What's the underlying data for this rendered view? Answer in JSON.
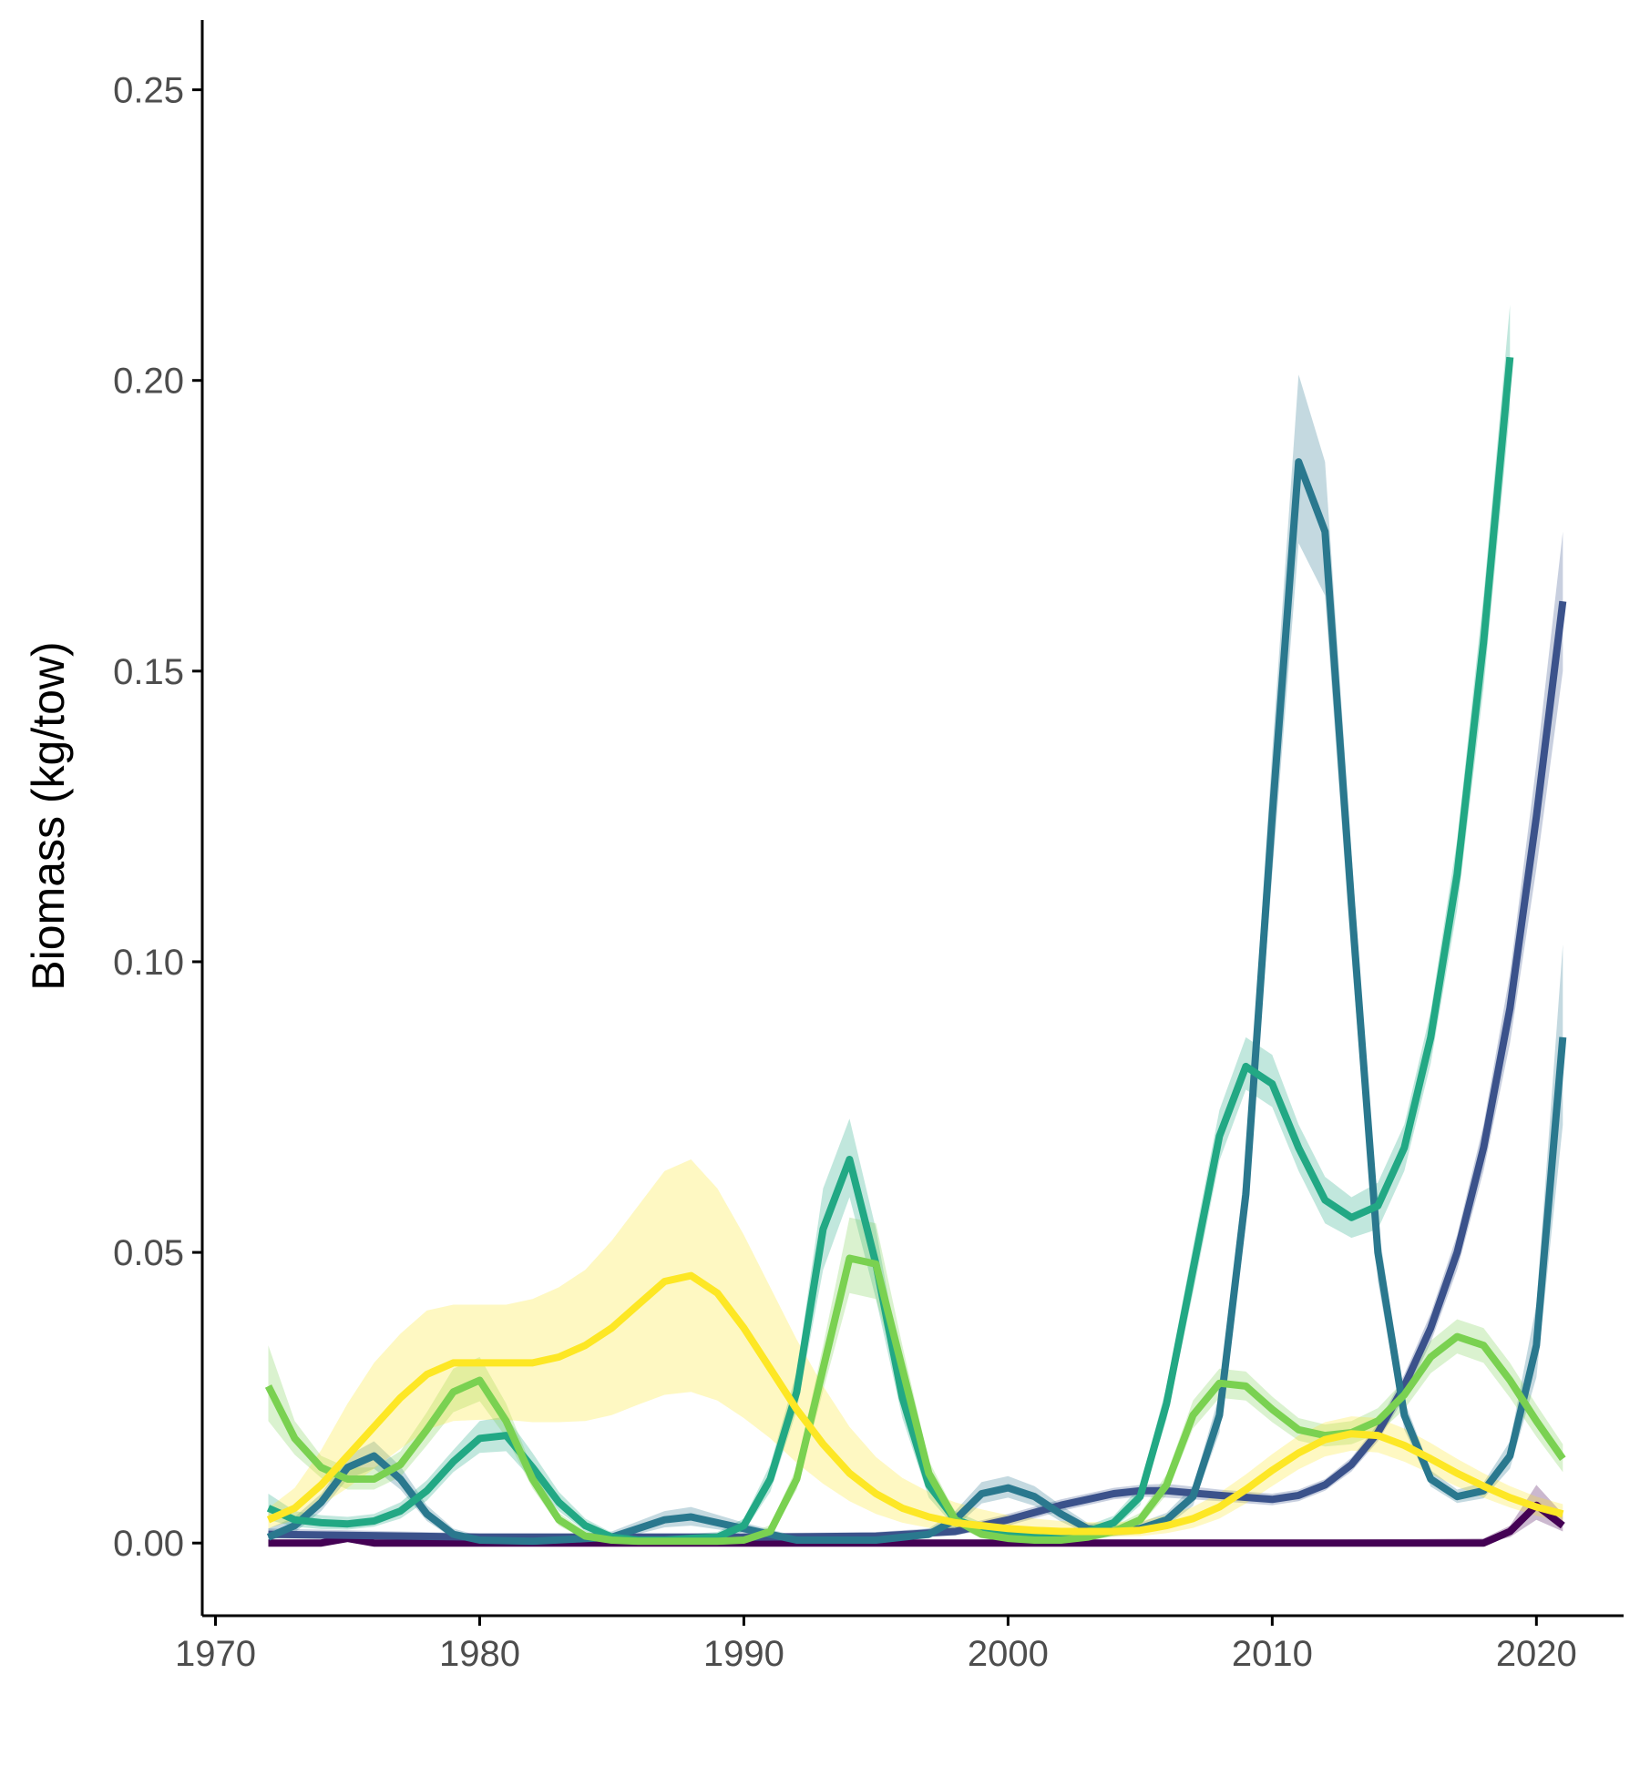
{
  "chart_data": {
    "type": "line",
    "ylabel": "Biomass (kg/tow)",
    "xlim": [
      1969.5,
      2023.3
    ],
    "ylim": [
      -0.0125,
      0.262
    ],
    "x_ticks": [
      1970,
      1980,
      1990,
      2000,
      2010,
      2020
    ],
    "y_ticks": [
      0.0,
      0.05,
      0.1,
      0.15,
      0.2,
      0.25
    ],
    "x_tick_labels": [
      "1970",
      "1980",
      "1990",
      "2000",
      "2010",
      "2020"
    ],
    "y_tick_labels": [
      "0.00",
      "0.05",
      "0.10",
      "0.15",
      "0.20",
      "0.25"
    ],
    "grid": false,
    "legend": "none",
    "series": [
      {
        "color": "#440154",
        "x": [
          1972,
          1974,
          1975,
          1976,
          1980,
          1990,
          2000,
          2010,
          2018,
          2019,
          2020,
          2021
        ],
        "values": [
          0.0,
          0.0,
          0.0008,
          0.0,
          0.0,
          0.0,
          0.0,
          0.0,
          0.0,
          0.002,
          0.0065,
          0.003
        ],
        "upper": [
          0.0005,
          0.0005,
          0.0012,
          0.0005,
          0.0005,
          0.0005,
          0.0005,
          0.0005,
          0.0008,
          0.003,
          0.01,
          0.005
        ],
        "lower": [
          0.0,
          0.0,
          0.0004,
          0.0,
          0.0,
          0.0,
          0.0,
          0.0,
          0.0,
          0.001,
          0.004,
          0.002
        ]
      },
      {
        "color": "#3b528b",
        "x": [
          1972,
          1980,
          1990,
          1995,
          1998,
          2000,
          2002,
          2004,
          2005,
          2006,
          2008,
          2010,
          2011,
          2012,
          2013,
          2014,
          2015,
          2016,
          2017,
          2018,
          2019,
          2020,
          2021
        ],
        "values": [
          0.0015,
          0.001,
          0.001,
          0.0012,
          0.002,
          0.004,
          0.0065,
          0.0085,
          0.009,
          0.009,
          0.0082,
          0.0075,
          0.0082,
          0.01,
          0.0135,
          0.019,
          0.027,
          0.037,
          0.05,
          0.068,
          0.092,
          0.125,
          0.162
        ],
        "upper": [
          0.0025,
          0.0017,
          0.0017,
          0.0019,
          0.0028,
          0.005,
          0.0075,
          0.0095,
          0.01,
          0.0102,
          0.0092,
          0.0085,
          0.0092,
          0.011,
          0.0147,
          0.0205,
          0.029,
          0.0395,
          0.053,
          0.072,
          0.098,
          0.134,
          0.174
        ],
        "lower": [
          0.0008,
          0.0004,
          0.0004,
          0.0006,
          0.0013,
          0.003,
          0.0055,
          0.0075,
          0.008,
          0.0078,
          0.0072,
          0.0065,
          0.0072,
          0.009,
          0.0123,
          0.0175,
          0.025,
          0.0345,
          0.047,
          0.064,
          0.086,
          0.116,
          0.15
        ]
      },
      {
        "color": "#2a788e",
        "x": [
          1972,
          1973,
          1974,
          1975,
          1976,
          1977,
          1978,
          1979,
          1980,
          1982,
          1985,
          1987,
          1988,
          1990,
          1992,
          1995,
          1997,
          1998,
          1999,
          2000,
          2001,
          2002,
          2003,
          2004,
          2005,
          2006,
          2007,
          2008,
          2009,
          2010,
          2011,
          2012,
          2013,
          2014,
          2015,
          2016,
          2017,
          2018,
          2019,
          2020,
          2021
        ],
        "values": [
          0.001,
          0.003,
          0.007,
          0.013,
          0.015,
          0.011,
          0.005,
          0.0015,
          0.0005,
          0.0003,
          0.001,
          0.004,
          0.0045,
          0.0025,
          0.0005,
          0.0005,
          0.0015,
          0.004,
          0.0085,
          0.0095,
          0.008,
          0.005,
          0.0025,
          0.002,
          0.0025,
          0.004,
          0.008,
          0.022,
          0.06,
          0.125,
          0.186,
          0.174,
          0.11,
          0.05,
          0.022,
          0.011,
          0.008,
          0.009,
          0.015,
          0.034,
          0.087
        ],
        "upper": [
          0.0025,
          0.0045,
          0.0085,
          0.015,
          0.0175,
          0.0132,
          0.0065,
          0.0025,
          0.0012,
          0.001,
          0.002,
          0.0055,
          0.0062,
          0.0035,
          0.0012,
          0.0012,
          0.0025,
          0.0055,
          0.0105,
          0.0115,
          0.0098,
          0.0065,
          0.0035,
          0.003,
          0.0035,
          0.0052,
          0.0098,
          0.0255,
          0.066,
          0.136,
          0.201,
          0.186,
          0.119,
          0.055,
          0.0245,
          0.0125,
          0.0092,
          0.0104,
          0.0175,
          0.041,
          0.103
        ],
        "lower": [
          0.0003,
          0.0018,
          0.0055,
          0.011,
          0.0128,
          0.0092,
          0.0038,
          0.0008,
          0.0001,
          0.0,
          0.0004,
          0.0027,
          0.003,
          0.0017,
          0.0001,
          0.0001,
          0.0008,
          0.0027,
          0.0068,
          0.0078,
          0.0064,
          0.0037,
          0.0016,
          0.0012,
          0.0016,
          0.0029,
          0.0064,
          0.019,
          0.055,
          0.115,
          0.172,
          0.163,
          0.101,
          0.045,
          0.0195,
          0.0097,
          0.0069,
          0.0077,
          0.0128,
          0.0285,
          0.072
        ]
      },
      {
        "color": "#22a884",
        "x": [
          1972,
          1973,
          1974,
          1975,
          1976,
          1977,
          1978,
          1979,
          1980,
          1981,
          1982,
          1983,
          1984,
          1985,
          1986,
          1987,
          1988,
          1989,
          1990,
          1991,
          1992,
          1993,
          1994,
          1995,
          1996,
          1997,
          1998,
          1999,
          2000,
          2001,
          2002,
          2003,
          2004,
          2005,
          2006,
          2007,
          2008,
          2009,
          2010,
          2011,
          2012,
          2013,
          2014,
          2015,
          2016,
          2017,
          2018,
          2019
        ],
        "values": [
          0.006,
          0.004,
          0.0035,
          0.0033,
          0.0038,
          0.0055,
          0.009,
          0.014,
          0.018,
          0.0185,
          0.013,
          0.007,
          0.003,
          0.001,
          0.0005,
          0.0005,
          0.0008,
          0.001,
          0.003,
          0.011,
          0.026,
          0.054,
          0.066,
          0.048,
          0.025,
          0.01,
          0.004,
          0.0025,
          0.0015,
          0.001,
          0.001,
          0.002,
          0.0035,
          0.008,
          0.024,
          0.047,
          0.07,
          0.082,
          0.079,
          0.068,
          0.059,
          0.056,
          0.058,
          0.068,
          0.087,
          0.115,
          0.155,
          0.204
        ],
        "upper": [
          0.0085,
          0.0055,
          0.0048,
          0.0045,
          0.005,
          0.007,
          0.0108,
          0.016,
          0.021,
          0.0218,
          0.0155,
          0.0088,
          0.0042,
          0.0018,
          0.0012,
          0.0012,
          0.0016,
          0.0019,
          0.0042,
          0.0135,
          0.0295,
          0.061,
          0.073,
          0.054,
          0.029,
          0.0125,
          0.0055,
          0.0035,
          0.0024,
          0.0018,
          0.0018,
          0.003,
          0.0047,
          0.0097,
          0.027,
          0.051,
          0.0745,
          0.087,
          0.084,
          0.072,
          0.063,
          0.0595,
          0.062,
          0.072,
          0.0915,
          0.121,
          0.163,
          0.213
        ],
        "lower": [
          0.004,
          0.0028,
          0.0024,
          0.0023,
          0.0028,
          0.0042,
          0.0073,
          0.0122,
          0.0155,
          0.0158,
          0.0108,
          0.0055,
          0.002,
          0.0004,
          0.0,
          0.0,
          0.0002,
          0.0004,
          0.002,
          0.0088,
          0.0228,
          0.047,
          0.0595,
          0.042,
          0.0215,
          0.0078,
          0.0027,
          0.0016,
          0.0008,
          0.0004,
          0.0004,
          0.0012,
          0.0025,
          0.0065,
          0.0213,
          0.043,
          0.0658,
          0.078,
          0.075,
          0.064,
          0.055,
          0.0525,
          0.054,
          0.064,
          0.0825,
          0.109,
          0.147,
          0.195
        ]
      },
      {
        "color": "#7ad151",
        "x": [
          1972,
          1973,
          1974,
          1975,
          1976,
          1977,
          1978,
          1979,
          1980,
          1981,
          1982,
          1983,
          1984,
          1985,
          1986,
          1987,
          1988,
          1989,
          1990,
          1991,
          1992,
          1993,
          1994,
          1995,
          1996,
          1997,
          1998,
          1999,
          2000,
          2001,
          2002,
          2003,
          2004,
          2005,
          2006,
          2007,
          2008,
          2009,
          2010,
          2011,
          2012,
          2013,
          2014,
          2015,
          2016,
          2017,
          2018,
          2019,
          2020,
          2021
        ],
        "values": [
          0.027,
          0.018,
          0.013,
          0.011,
          0.011,
          0.0135,
          0.0195,
          0.026,
          0.028,
          0.021,
          0.011,
          0.004,
          0.0012,
          0.0005,
          0.0003,
          0.0003,
          0.0003,
          0.0003,
          0.0005,
          0.002,
          0.011,
          0.03,
          0.049,
          0.048,
          0.03,
          0.012,
          0.004,
          0.0015,
          0.0008,
          0.0005,
          0.0005,
          0.001,
          0.002,
          0.004,
          0.01,
          0.022,
          0.0275,
          0.027,
          0.023,
          0.0195,
          0.0185,
          0.019,
          0.021,
          0.0255,
          0.032,
          0.0355,
          0.034,
          0.028,
          0.021,
          0.0145
        ],
        "upper": [
          0.034,
          0.021,
          0.015,
          0.013,
          0.013,
          0.0158,
          0.0225,
          0.03,
          0.032,
          0.024,
          0.0128,
          0.0052,
          0.002,
          0.0012,
          0.001,
          0.001,
          0.001,
          0.001,
          0.0012,
          0.0031,
          0.013,
          0.034,
          0.056,
          0.055,
          0.034,
          0.0142,
          0.0052,
          0.0023,
          0.0015,
          0.0012,
          0.0012,
          0.0018,
          0.0029,
          0.0052,
          0.0118,
          0.0245,
          0.03,
          0.0295,
          0.0252,
          0.0215,
          0.0204,
          0.021,
          0.0232,
          0.028,
          0.0348,
          0.0385,
          0.037,
          0.031,
          0.0238,
          0.017
        ],
        "lower": [
          0.021,
          0.0152,
          0.0112,
          0.0092,
          0.0092,
          0.0114,
          0.0168,
          0.0225,
          0.0244,
          0.0182,
          0.0094,
          0.003,
          0.0006,
          0.0,
          0.0,
          0.0,
          0.0,
          0.0,
          0.0,
          0.0011,
          0.0092,
          0.0262,
          0.043,
          0.042,
          0.0262,
          0.0099,
          0.0029,
          0.0008,
          0.0002,
          0.0,
          0.0,
          0.0003,
          0.0012,
          0.003,
          0.0083,
          0.0197,
          0.025,
          0.0245,
          0.0208,
          0.0176,
          0.0166,
          0.017,
          0.0188,
          0.023,
          0.0292,
          0.0326,
          0.031,
          0.025,
          0.0183,
          0.0122
        ]
      },
      {
        "color": "#fde725",
        "x": [
          1972,
          1973,
          1974,
          1975,
          1976,
          1977,
          1978,
          1979,
          1980,
          1981,
          1982,
          1983,
          1984,
          1985,
          1986,
          1987,
          1988,
          1989,
          1990,
          1991,
          1992,
          1993,
          1994,
          1995,
          1996,
          1997,
          1998,
          1999,
          2000,
          2001,
          2002,
          2003,
          2004,
          2005,
          2006,
          2007,
          2008,
          2009,
          2010,
          2011,
          2012,
          2013,
          2014,
          2015,
          2016,
          2017,
          2018,
          2019,
          2020,
          2021
        ],
        "values": [
          0.004,
          0.006,
          0.01,
          0.015,
          0.02,
          0.025,
          0.029,
          0.031,
          0.031,
          0.031,
          0.031,
          0.032,
          0.034,
          0.037,
          0.041,
          0.045,
          0.046,
          0.043,
          0.037,
          0.03,
          0.023,
          0.017,
          0.012,
          0.0085,
          0.006,
          0.0045,
          0.0035,
          0.003,
          0.0025,
          0.0022,
          0.002,
          0.002,
          0.002,
          0.0022,
          0.003,
          0.0042,
          0.0062,
          0.0092,
          0.0125,
          0.0155,
          0.0178,
          0.0188,
          0.0185,
          0.0168,
          0.0145,
          0.012,
          0.0098,
          0.0078,
          0.0062,
          0.005
        ],
        "upper": [
          0.006,
          0.0095,
          0.016,
          0.024,
          0.031,
          0.036,
          0.04,
          0.041,
          0.041,
          0.041,
          0.042,
          0.044,
          0.047,
          0.052,
          0.058,
          0.064,
          0.066,
          0.061,
          0.053,
          0.044,
          0.035,
          0.027,
          0.02,
          0.0148,
          0.0112,
          0.0088,
          0.007,
          0.0058,
          0.0048,
          0.0042,
          0.0038,
          0.0036,
          0.0036,
          0.0038,
          0.0048,
          0.0062,
          0.0086,
          0.0118,
          0.0153,
          0.0185,
          0.0208,
          0.0218,
          0.0215,
          0.0197,
          0.0172,
          0.0145,
          0.012,
          0.0098,
          0.008,
          0.0067
        ],
        "lower": [
          0.0025,
          0.004,
          0.0065,
          0.0095,
          0.0128,
          0.0162,
          0.0195,
          0.021,
          0.0212,
          0.0212,
          0.0208,
          0.0208,
          0.021,
          0.022,
          0.0238,
          0.0255,
          0.026,
          0.0245,
          0.0215,
          0.018,
          0.0138,
          0.0102,
          0.0072,
          0.005,
          0.0035,
          0.0026,
          0.002,
          0.0017,
          0.0014,
          0.0012,
          0.0011,
          0.0011,
          0.0011,
          0.0012,
          0.0017,
          0.0026,
          0.0042,
          0.0068,
          0.0098,
          0.0127,
          0.0149,
          0.0159,
          0.0156,
          0.014,
          0.0119,
          0.0097,
          0.0078,
          0.0061,
          0.0047,
          0.0037
        ]
      }
    ]
  }
}
